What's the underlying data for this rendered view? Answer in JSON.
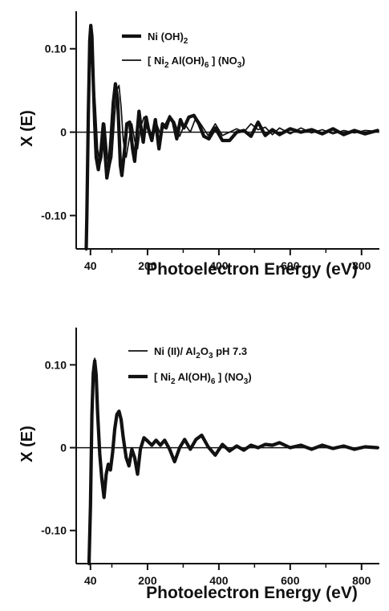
{
  "chart_data": [
    {
      "type": "line",
      "xlabel": "Photoelectron Energy (eV)",
      "ylabel": "X (E)",
      "xlim": [
        0,
        850
      ],
      "ylim": [
        -0.14,
        0.145
      ],
      "x_ticks": [
        40,
        200,
        400,
        600,
        800
      ],
      "x_minor_ticks": [
        100,
        300,
        500,
        700
      ],
      "y_ticks": [
        {
          "value": 0.1,
          "label": "0.10"
        },
        {
          "value": 0,
          "label": "0"
        },
        {
          "value": -0.1,
          "label": "-0.10"
        }
      ],
      "zero_line": true,
      "legend_position": "top-right",
      "series": [
        {
          "name": "Ni (OH)",
          "name_sub": "2",
          "stroke": "thick",
          "x": [
            28,
            30,
            34,
            38,
            41,
            44,
            48,
            52,
            56,
            62,
            70,
            76,
            80,
            86,
            92,
            98,
            104,
            110,
            116,
            120,
            124,
            128,
            136,
            142,
            150,
            158,
            164,
            170,
            176,
            182,
            188,
            196,
            202,
            212,
            222,
            232,
            242,
            252,
            262,
            272,
            282,
            292,
            302,
            316,
            330,
            344,
            358,
            372,
            390,
            410,
            430,
            450,
            470,
            490,
            510,
            530,
            550,
            570,
            600,
            630,
            660,
            690,
            720,
            750,
            780,
            810,
            845
          ],
          "y": [
            -0.14,
            -0.1,
            0.02,
            0.11,
            0.128,
            0.115,
            0.06,
            0.01,
            -0.03,
            -0.045,
            -0.02,
            0.01,
            -0.02,
            -0.055,
            -0.04,
            -0.005,
            0.035,
            0.058,
            0.04,
            0.0,
            -0.04,
            -0.052,
            -0.02,
            0.01,
            0.012,
            -0.02,
            -0.035,
            -0.005,
            0.025,
            0.005,
            -0.012,
            0.018,
            0.005,
            -0.01,
            0.015,
            -0.02,
            0.01,
            0.005,
            0.018,
            0.012,
            -0.008,
            0.015,
            0.005,
            0.018,
            0.02,
            0.01,
            -0.005,
            -0.008,
            0.005,
            -0.01,
            -0.01,
            0.0,
            0.002,
            -0.005,
            0.012,
            -0.004,
            0.003,
            -0.003,
            0.004,
            0.0,
            0.003,
            -0.002,
            0.004,
            -0.003,
            0.002,
            -0.002,
            0.002
          ]
        },
        {
          "name": "[ Ni",
          "name_sub": "2",
          "name_rest": " Al(OH)",
          "name_sub2": "6",
          "name_tail": " ] (NO",
          "name_sub3": "3",
          "name_end": ")",
          "stroke": "thin",
          "x": [
            28,
            32,
            36,
            40,
            44,
            48,
            54,
            60,
            66,
            72,
            80,
            86,
            92,
            100,
            108,
            114,
            120,
            126,
            132,
            140,
            148,
            156,
            164,
            172,
            180,
            190,
            200,
            212,
            224,
            236,
            248,
            262,
            276,
            290,
            304,
            320,
            336,
            352,
            370,
            390,
            410,
            430,
            450,
            470,
            490,
            510,
            530,
            550,
            570,
            600,
            630,
            660,
            690,
            720,
            750,
            780,
            810,
            845
          ],
          "y": [
            -0.12,
            -0.05,
            0.07,
            0.12,
            0.11,
            0.07,
            0.03,
            -0.02,
            -0.04,
            -0.03,
            0.01,
            -0.02,
            -0.045,
            -0.03,
            0.02,
            0.05,
            0.056,
            0.03,
            -0.01,
            -0.03,
            -0.01,
            0.01,
            -0.01,
            -0.02,
            0.005,
            0.018,
            0.01,
            -0.006,
            0.012,
            -0.003,
            0.008,
            0.02,
            0.012,
            -0.005,
            0.01,
            0.0,
            0.018,
            0.008,
            -0.004,
            0.01,
            -0.004,
            0.0,
            0.004,
            0.0,
            0.01,
            0.003,
            0.006,
            -0.003,
            0.005,
            -0.002,
            0.005,
            -0.001,
            0.003,
            -0.002,
            0.002,
            -0.001,
            0.002,
            0.001
          ]
        }
      ]
    },
    {
      "type": "line",
      "xlabel": "Photoelectron Energy (eV)",
      "ylabel": "X (E)",
      "xlim": [
        0,
        850
      ],
      "ylim": [
        -0.14,
        0.145
      ],
      "x_ticks": [
        40,
        200,
        400,
        600,
        800
      ],
      "x_minor_ticks": [
        100,
        300,
        500,
        700
      ],
      "y_ticks": [
        {
          "value": 0.1,
          "label": "0.10"
        },
        {
          "value": 0,
          "label": "0"
        },
        {
          "value": -0.1,
          "label": "-0.10"
        }
      ],
      "zero_line": true,
      "legend_position": "top-right",
      "series": [
        {
          "name": "Ni (II)/ Al",
          "name_sub": "2",
          "name_rest": "O",
          "name_sub2": "3",
          "name_tail": " pH 7.3",
          "stroke": "thin",
          "x": [
            36,
            40,
            44,
            48,
            52,
            56,
            60,
            66,
            72,
            78,
            84,
            90,
            96,
            102,
            108,
            114,
            120,
            126,
            132,
            140,
            148,
            156,
            164,
            172,
            180,
            190,
            200,
            212,
            224,
            236,
            248,
            262,
            276,
            290,
            304,
            320,
            336,
            352,
            370,
            390,
            410,
            430,
            450,
            470,
            490,
            510,
            530,
            550,
            570,
            600,
            630,
            660,
            690,
            720,
            750,
            780,
            810,
            845
          ],
          "y": [
            -0.14,
            -0.06,
            0.05,
            0.095,
            0.108,
            0.09,
            0.04,
            -0.01,
            -0.04,
            -0.058,
            -0.03,
            -0.02,
            -0.025,
            -0.005,
            0.025,
            0.04,
            0.045,
            0.035,
            0.015,
            -0.01,
            -0.02,
            0.0,
            -0.01,
            -0.03,
            0.0,
            0.012,
            0.01,
            0.004,
            0.01,
            0.004,
            0.01,
            0.0,
            -0.015,
            0.002,
            0.01,
            0.0,
            0.01,
            0.014,
            0.002,
            -0.008,
            0.004,
            -0.004,
            0.003,
            -0.002,
            0.003,
            0.0,
            0.004,
            0.003,
            0.005,
            0.0,
            0.002,
            -0.002,
            0.003,
            0.0,
            0.002,
            -0.002,
            0.001,
            0.0
          ]
        },
        {
          "name": "[ Ni",
          "name_sub": "2",
          "name_rest": " Al(OH)",
          "name_sub2": "6",
          "name_tail": " ] (NO",
          "name_sub3": "3",
          "name_end": ")",
          "stroke": "thick",
          "x": [
            36,
            40,
            44,
            48,
            52,
            56,
            60,
            66,
            72,
            78,
            84,
            90,
            96,
            102,
            108,
            114,
            120,
            126,
            132,
            140,
            148,
            156,
            164,
            172,
            180,
            190,
            200,
            212,
            224,
            236,
            248,
            262,
            276,
            290,
            304,
            320,
            336,
            352,
            370,
            390,
            410,
            430,
            450,
            470,
            490,
            510,
            530,
            550,
            570,
            600,
            630,
            660,
            690,
            720,
            750,
            780,
            810,
            845
          ],
          "y": [
            -0.14,
            -0.07,
            0.04,
            0.09,
            0.105,
            0.088,
            0.042,
            -0.008,
            -0.038,
            -0.06,
            -0.032,
            -0.02,
            -0.027,
            -0.006,
            0.022,
            0.04,
            0.044,
            0.034,
            0.012,
            -0.012,
            -0.022,
            -0.002,
            -0.012,
            -0.032,
            -0.002,
            0.012,
            0.008,
            0.003,
            0.009,
            0.003,
            0.009,
            -0.002,
            -0.017,
            0.0,
            0.01,
            -0.002,
            0.01,
            0.015,
            0.001,
            -0.009,
            0.004,
            -0.004,
            0.002,
            -0.003,
            0.003,
            0.0,
            0.004,
            0.003,
            0.006,
            0.0,
            0.003,
            -0.002,
            0.003,
            -0.001,
            0.002,
            -0.002,
            0.001,
            0.0
          ]
        }
      ]
    }
  ]
}
